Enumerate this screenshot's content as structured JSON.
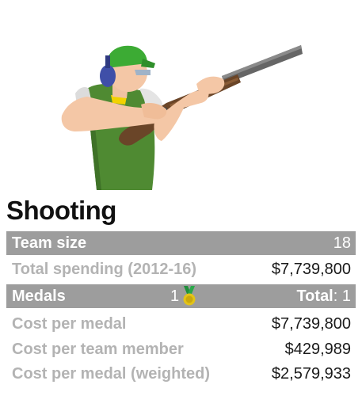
{
  "sport": {
    "title": "Shooting"
  },
  "stats": {
    "team_size_label": "Team size",
    "team_size_value": "18",
    "total_spending_label": "Total spending (2012-16)",
    "total_spending_value": "$7,739,800",
    "medals_label": "Medals",
    "medals_gold_count": "1",
    "medals_total_label": "Total",
    "medals_total_value": "1",
    "cost_per_medal_label": "Cost per medal",
    "cost_per_medal_value": "$7,739,800",
    "cost_per_member_label": "Cost per team member",
    "cost_per_member_value": "$429,989",
    "cost_per_medal_weighted_label": "Cost per medal (weighted)",
    "cost_per_medal_weighted_value": "$2,579,933"
  },
  "icons": {
    "illustration": "shooter-illustration",
    "medal": "gold-medal-icon"
  },
  "colors": {
    "band": "#9d9d9d",
    "label_grey": "#b3b3b3",
    "value_dark": "#1a1a1a",
    "cap_green": "#3cab34",
    "vest_green": "#4f8a32",
    "ear_muff_blue": "#3f4fa8",
    "medal_gold": "#e3c317",
    "ribbon_green": "#1f8f3a"
  }
}
